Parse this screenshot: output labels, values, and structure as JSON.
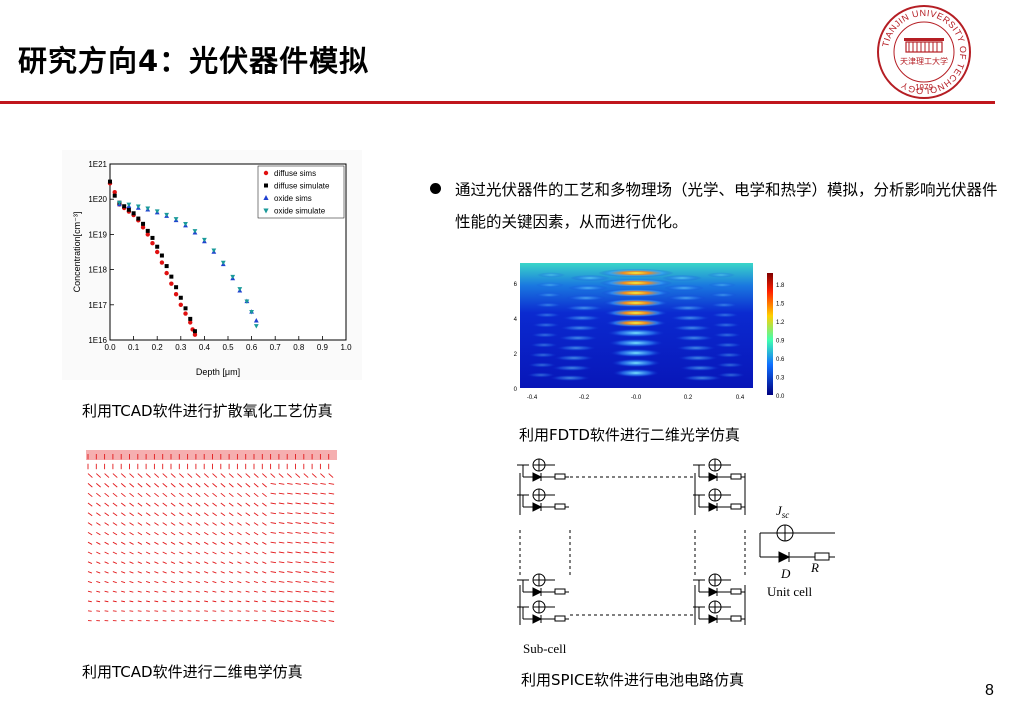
{
  "slide": {
    "title": "研究方向4：光伏器件模拟",
    "page_number": "8",
    "bullet": "通过光伏器件的工艺和多物理场（光学、电学和热学）模拟，分析影响光伏器件性能的关键因素，从而进行优化。"
  },
  "logo": {
    "ring_text": "TIANJIN UNIVERSITY OF TECHNOLOGY",
    "year": "1979",
    "name": "天津理工大学"
  },
  "captions": {
    "tcad_diffusion": "利用TCAD软件进行扩散氧化工艺仿真",
    "fdtd": "利用FDTD软件进行二维光学仿真",
    "tcad_electric": "利用TCAD软件进行二维电学仿真",
    "spice": "利用SPICE软件进行电池电路仿真"
  },
  "chart_data": {
    "type": "scatter",
    "xlabel": "Depth [μm]",
    "ylabel": "Concentration[cm⁻³]",
    "x_ticks": [
      "0.0",
      "0.1",
      "0.2",
      "0.3",
      "0.4",
      "0.5",
      "0.6",
      "0.7",
      "0.8",
      "0.9",
      "1.0"
    ],
    "y_ticks": [
      "1E21",
      "1E20",
      "1E19",
      "1E18",
      "1E17",
      "1E16"
    ],
    "xlim": [
      0,
      1.0
    ],
    "ylim_log10": [
      16,
      21
    ],
    "legend_position": "top-right",
    "series": [
      {
        "name": "diffuse sims",
        "color": "#e01010",
        "marker": "circle",
        "x": [
          0.0,
          0.02,
          0.04,
          0.06,
          0.08,
          0.1,
          0.12,
          0.14,
          0.16,
          0.18,
          0.2,
          0.22,
          0.24,
          0.26,
          0.28,
          0.3,
          0.32,
          0.34,
          0.35,
          0.36
        ],
        "y": [
          20.45,
          20.2,
          19.85,
          19.75,
          19.65,
          19.55,
          19.4,
          19.2,
          19.0,
          18.75,
          18.5,
          18.2,
          17.9,
          17.6,
          17.3,
          17.0,
          16.75,
          16.5,
          16.3,
          16.15
        ]
      },
      {
        "name": "diffuse simulate",
        "color": "#000000",
        "marker": "square",
        "x": [
          0.0,
          0.02,
          0.04,
          0.06,
          0.08,
          0.1,
          0.12,
          0.14,
          0.16,
          0.18,
          0.2,
          0.22,
          0.24,
          0.26,
          0.28,
          0.3,
          0.32,
          0.34,
          0.36
        ],
        "y": [
          20.5,
          20.1,
          19.9,
          19.8,
          19.7,
          19.6,
          19.45,
          19.3,
          19.1,
          18.9,
          18.65,
          18.4,
          18.1,
          17.8,
          17.5,
          17.2,
          16.9,
          16.6,
          16.25
        ]
      },
      {
        "name": "oxide sims",
        "color": "#2040d0",
        "marker": "triangle-up",
        "x": [
          0.04,
          0.08,
          0.12,
          0.16,
          0.2,
          0.24,
          0.28,
          0.32,
          0.36,
          0.4,
          0.44,
          0.48,
          0.52,
          0.55,
          0.58,
          0.6,
          0.62
        ],
        "y": [
          19.85,
          19.8,
          19.75,
          19.7,
          19.62,
          19.52,
          19.4,
          19.25,
          19.05,
          18.8,
          18.5,
          18.15,
          17.75,
          17.4,
          17.1,
          16.8,
          16.55
        ]
      },
      {
        "name": "oxide simulate",
        "color": "#1a9a9a",
        "marker": "triangle-down",
        "x": [
          0.04,
          0.08,
          0.12,
          0.16,
          0.2,
          0.24,
          0.28,
          0.32,
          0.36,
          0.4,
          0.44,
          0.48,
          0.52,
          0.55,
          0.58,
          0.6,
          0.62
        ],
        "y": [
          19.9,
          19.85,
          19.8,
          19.74,
          19.66,
          19.56,
          19.44,
          19.3,
          19.1,
          18.85,
          18.55,
          18.2,
          17.8,
          17.45,
          17.1,
          16.8,
          16.4
        ]
      }
    ]
  },
  "fdtd_plot": {
    "x_ticks": [
      "-0.4",
      "-0.2",
      "-0.0",
      "0.2",
      "0.4"
    ],
    "y_ticks": [
      "6",
      "4",
      "2",
      "0"
    ],
    "colorbar_ticks": [
      "1.8",
      "1.5",
      "1.2",
      "0.9",
      "0.6",
      "0.3",
      "0.0"
    ]
  },
  "circuit": {
    "jsc_label": "J",
    "jsc_sub": "sc",
    "r_label": "R",
    "d_label": "D",
    "unit_cell_label": "Unit cell",
    "sub_cell_label": "Sub-cell"
  }
}
